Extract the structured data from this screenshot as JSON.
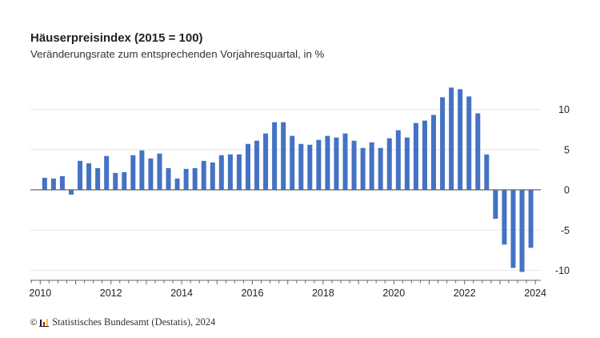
{
  "header": {
    "title": "Häuserpreisindex (2015 = 100)",
    "subtitle": "Veränderungsrate zum entsprechenden Vorjahresquartal, in %"
  },
  "footer": {
    "copyright_symbol": "©",
    "source": "Statistisches Bundesamt (Destatis), 2024",
    "logo_icon": "destatis-logo-icon"
  },
  "colors": {
    "bar": "#4472c4",
    "grid": "#e6e6e6",
    "axis": "#666666",
    "logo": [
      "#1a1a1a",
      "#e3000f",
      "#ffcc00"
    ]
  },
  "chart_data": {
    "type": "bar",
    "title": "Häuserpreisindex (2015 = 100)",
    "subtitle": "Veränderungsrate zum entsprechenden Vorjahresquartal, in %",
    "xlabel": "",
    "ylabel": "",
    "ylim": [
      -11,
      14
    ],
    "yticks": [
      10,
      5,
      0,
      -5,
      -10
    ],
    "ytick_labels": [
      "10",
      "5",
      "0",
      "-5",
      "-10"
    ],
    "y_axis_position": "right",
    "xticks": [
      "2010",
      "2012",
      "2014",
      "2016",
      "2018",
      "2020",
      "2022",
      "2024"
    ],
    "grid": true,
    "legend": "none",
    "categories": [
      "2010 Q1",
      "2010 Q2",
      "2010 Q3",
      "2010 Q4",
      "2011 Q1",
      "2011 Q2",
      "2011 Q3",
      "2011 Q4",
      "2012 Q1",
      "2012 Q2",
      "2012 Q3",
      "2012 Q4",
      "2013 Q1",
      "2013 Q2",
      "2013 Q3",
      "2013 Q4",
      "2014 Q1",
      "2014 Q2",
      "2014 Q3",
      "2014 Q4",
      "2015 Q1",
      "2015 Q2",
      "2015 Q3",
      "2015 Q4",
      "2016 Q1",
      "2016 Q2",
      "2016 Q3",
      "2016 Q4",
      "2017 Q1",
      "2017 Q2",
      "2017 Q3",
      "2017 Q4",
      "2018 Q1",
      "2018 Q2",
      "2018 Q3",
      "2018 Q4",
      "2019 Q1",
      "2019 Q2",
      "2019 Q3",
      "2019 Q4",
      "2020 Q1",
      "2020 Q2",
      "2020 Q3",
      "2020 Q4",
      "2021 Q1",
      "2021 Q2",
      "2021 Q3",
      "2021 Q4",
      "2022 Q1",
      "2022 Q2",
      "2022 Q3",
      "2022 Q4",
      "2023 Q1",
      "2023 Q2",
      "2023 Q3",
      "2023 Q4"
    ],
    "values": [
      1.5,
      1.4,
      1.7,
      -0.6,
      3.6,
      3.3,
      2.7,
      4.2,
      2.1,
      2.2,
      4.3,
      4.9,
      3.9,
      4.5,
      2.7,
      1.4,
      2.6,
      2.7,
      3.6,
      3.4,
      4.3,
      4.4,
      4.4,
      5.7,
      6.1,
      7.0,
      8.4,
      8.4,
      6.7,
      5.7,
      5.6,
      6.2,
      6.7,
      6.5,
      7.0,
      6.1,
      5.2,
      5.9,
      5.2,
      6.4,
      7.4,
      6.5,
      8.3,
      8.6,
      9.3,
      11.5,
      12.7,
      12.5,
      11.6,
      9.5,
      4.4,
      -3.6,
      -6.8,
      -9.7,
      -10.2,
      -7.2
    ],
    "x_start_year": 2010,
    "x_end_year": 2024
  }
}
